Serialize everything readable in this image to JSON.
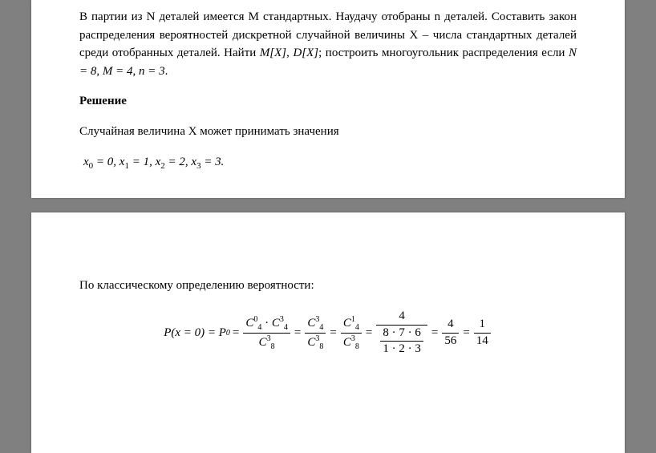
{
  "problem": {
    "text": "В партии из N деталей имеется M стандартных. Наудачу отобраны n деталей. Составить закон распределения вероятностей дискретной случайной величины X – числа стандартных деталей среди отобранных деталей. Найти",
    "mx": "M[X]",
    "dx": "D[X]",
    "tail": "; построить многоугольник распределения если",
    "n_val": "N = 8",
    "m_val": "M = 4",
    "nn_val": "n = 3",
    "dot": "."
  },
  "solution_heading": "Решение",
  "values_intro": "Случайная величина X может принимать значения",
  "values": {
    "x0l": "x",
    "x0s": "0",
    "x0v": " = 0,   ",
    "x1l": "x",
    "x1s": "1",
    "x1v": " = 1,   ",
    "x2l": "x",
    "x2s": "2",
    "x2v": " = 2,   ",
    "x3l": "x",
    "x3s": "3",
    "x3v": " = 3."
  },
  "classical_label": "По классическому определению вероятности:",
  "formula": {
    "lhs1": "P(x = 0) = P",
    "lhs1_sub": "0",
    "eq": " = ",
    "t1_num_a": "C",
    "t1_num_a_sup": "0",
    "t1_num_a_sub": "4",
    "t1_num_dot": " · ",
    "t1_num_b": "C",
    "t1_num_b_sup": "3",
    "t1_num_b_sub": "4",
    "t1_den": "C",
    "t1_den_sup": "3",
    "t1_den_sub": "8",
    "t2_num": "C",
    "t2_num_sup": "3",
    "t2_num_sub": "4",
    "t2_den": "C",
    "t2_den_sup": "3",
    "t2_den_sub": "8",
    "t3_num": "C",
    "t3_num_sup": "1",
    "t3_num_sub": "4",
    "t3_den": "C",
    "t3_den_sup": "3",
    "t3_den_sub": "8",
    "t4_num": "4",
    "t4_den_top": "8 · 7 · 6",
    "t4_den_bot": "1 · 2 · 3",
    "t5_num": "4",
    "t5_den": "56",
    "t6_num": "1",
    "t6_den": "14"
  }
}
